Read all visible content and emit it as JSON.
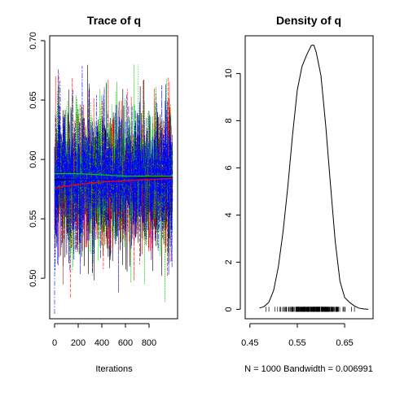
{
  "chart_data": [
    {
      "type": "line",
      "title": "Trace of q",
      "xlabel": "Iterations",
      "ylabel": "",
      "xlim": [
        0,
        1000
      ],
      "ylim": [
        0.47,
        0.7
      ],
      "x_ticks": [
        0,
        200,
        400,
        600,
        800
      ],
      "x_tick_labels": [
        "0",
        "200",
        "400",
        "600",
        "800"
      ],
      "y_ticks": [
        0.5,
        0.55,
        0.6,
        0.65,
        0.7
      ],
      "y_tick_labels": [
        "0.50",
        "0.55",
        "0.60",
        "0.65",
        "0.70"
      ],
      "n_iterations": 1000,
      "series": [
        {
          "color": "#000000",
          "mean": 0.583,
          "sd": 0.03,
          "min": 0.48,
          "max": 0.684
        },
        {
          "color": "#ff0000",
          "mean": 0.582,
          "sd": 0.03,
          "min": 0.48,
          "max": 0.692
        },
        {
          "color": "#00cd00",
          "mean": 0.587,
          "sd": 0.03,
          "min": 0.48,
          "max": 0.68
        },
        {
          "color": "#0000ff",
          "mean": 0.584,
          "sd": 0.03,
          "min": 0.47,
          "max": 0.686
        }
      ],
      "running_mean": [
        {
          "color": "#000000",
          "x": [
            0,
            200,
            400,
            600,
            800,
            1000
          ],
          "y": [
            0.583,
            0.583,
            0.583,
            0.584,
            0.585,
            0.585
          ]
        },
        {
          "color": "#ff0000",
          "x": [
            0,
            200,
            400,
            600,
            800,
            1000
          ],
          "y": [
            0.576,
            0.579,
            0.581,
            0.582,
            0.583,
            0.584
          ]
        },
        {
          "color": "#00cd00",
          "x": [
            0,
            200,
            400,
            600,
            800,
            1000
          ],
          "y": [
            0.588,
            0.588,
            0.587,
            0.586,
            0.586,
            0.586
          ]
        },
        {
          "color": "#0000ff",
          "x": [
            0,
            200,
            400,
            600,
            800,
            1000
          ],
          "y": [
            0.582,
            0.583,
            0.583,
            0.584,
            0.584,
            0.585
          ]
        }
      ]
    },
    {
      "type": "line",
      "title": "Density of q",
      "xlabel": "N = 1000   Bandwidth = 0.006991",
      "ylabel": "",
      "xlim": [
        0.44,
        0.71
      ],
      "ylim": [
        -0.4,
        11.6
      ],
      "x_ticks": [
        0.45,
        0.55,
        0.65
      ],
      "x_tick_labels": [
        "0.45",
        "0.55",
        "0.65"
      ],
      "y_ticks": [
        0,
        2,
        4,
        6,
        8,
        10
      ],
      "y_tick_labels": [
        "0",
        "2",
        "4",
        "6",
        "8",
        "10"
      ],
      "density": {
        "x": [
          0.47,
          0.48,
          0.49,
          0.5,
          0.51,
          0.52,
          0.53,
          0.54,
          0.55,
          0.56,
          0.57,
          0.58,
          0.585,
          0.59,
          0.6,
          0.61,
          0.62,
          0.63,
          0.64,
          0.65,
          0.66,
          0.67,
          0.68,
          0.69,
          0.7
        ],
        "y": [
          0.05,
          0.12,
          0.3,
          0.8,
          1.8,
          3.3,
          5.2,
          7.4,
          9.3,
          10.3,
          10.8,
          11.2,
          11.2,
          10.9,
          9.9,
          7.8,
          5.3,
          2.9,
          1.2,
          0.5,
          0.3,
          0.15,
          0.05,
          0.02,
          0.0
        ]
      },
      "rug": {
        "min": 0.48,
        "max": 0.69,
        "n": 1000,
        "mean": 0.584,
        "sd": 0.031
      }
    }
  ]
}
